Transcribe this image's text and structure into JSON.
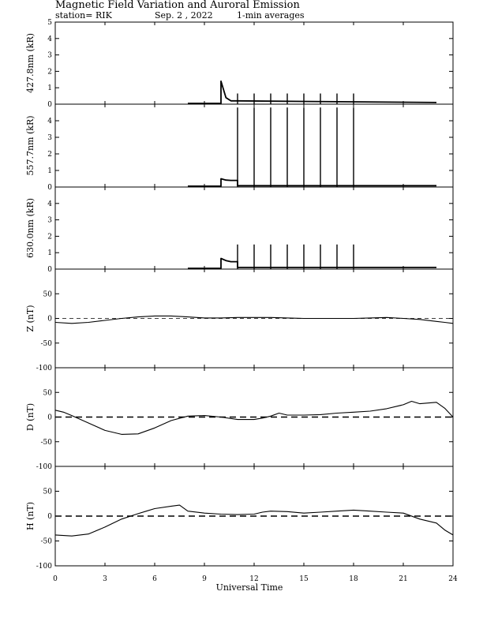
{
  "header": {
    "title": "Magnetic Field Variation and Auroral Emission",
    "station": "station= RIK",
    "date": "Sep. 2  , 2022",
    "averaging": "1-min averages"
  },
  "chart_data": [
    {
      "type": "line",
      "ylabel": "427.8nm (kR)",
      "ylim": [
        0,
        5
      ],
      "yticks": [
        0,
        1,
        2,
        3,
        4,
        5
      ],
      "xlim": [
        0,
        24
      ],
      "series": [
        {
          "values": [
            [
              8,
              0.05
            ],
            [
              10,
              0.05
            ],
            [
              10,
              1.4
            ],
            [
              10.3,
              0.4
            ],
            [
              10.6,
              0.2
            ],
            [
              11,
              0.2
            ],
            [
              23,
              0.1
            ]
          ]
        }
      ],
      "spikes": {
        "times": [
          11,
          12,
          13,
          14,
          15,
          16,
          17,
          18
        ],
        "height": 0.65
      }
    },
    {
      "type": "line",
      "ylabel": "557.7nm (kR)",
      "ylim": [
        0,
        5
      ],
      "yticks": [
        0,
        1,
        2,
        3,
        4
      ],
      "xlim": [
        0,
        24
      ],
      "series": [
        {
          "values": [
            [
              8,
              0.05
            ],
            [
              10,
              0.05
            ],
            [
              10,
              0.5
            ],
            [
              10.3,
              0.42
            ],
            [
              10.6,
              0.4
            ],
            [
              11,
              0.4
            ],
            [
              11,
              0.08
            ],
            [
              23,
              0.08
            ]
          ]
        }
      ],
      "spikes": {
        "times": [
          11,
          12,
          13,
          14,
          15,
          16,
          17,
          18
        ],
        "height": 4.8
      }
    },
    {
      "type": "line",
      "ylabel": "630.0nm (kR)",
      "ylim": [
        0,
        5
      ],
      "yticks": [
        0,
        1,
        2,
        3,
        4
      ],
      "xlim": [
        0,
        24
      ],
      "series": [
        {
          "values": [
            [
              8,
              0.05
            ],
            [
              10,
              0.05
            ],
            [
              10,
              0.65
            ],
            [
              10.3,
              0.52
            ],
            [
              10.6,
              0.45
            ],
            [
              11,
              0.45
            ],
            [
              11,
              0.1
            ],
            [
              23,
              0.1
            ]
          ]
        }
      ],
      "spikes": {
        "times": [
          11,
          12,
          13,
          14,
          15,
          16,
          17,
          18
        ],
        "height": 1.5
      }
    },
    {
      "type": "line",
      "ylabel": "Z (nT)",
      "ylim": [
        -100,
        100
      ],
      "yticks": [
        -100,
        -50,
        0,
        50
      ],
      "xlim": [
        0,
        24
      ],
      "zero_line": "thin-dashed",
      "series": [
        {
          "values": [
            [
              0,
              -8
            ],
            [
              1,
              -10
            ],
            [
              2,
              -8
            ],
            [
              3,
              -4
            ],
            [
              4,
              0
            ],
            [
              5,
              3
            ],
            [
              6,
              5
            ],
            [
              7,
              5
            ],
            [
              8,
              3
            ],
            [
              9,
              1
            ],
            [
              10,
              1
            ],
            [
              11,
              2
            ],
            [
              12,
              2
            ],
            [
              13,
              2
            ],
            [
              14,
              1
            ],
            [
              15,
              0
            ],
            [
              16,
              0
            ],
            [
              17,
              0
            ],
            [
              18,
              0
            ],
            [
              19,
              1
            ],
            [
              20,
              2
            ],
            [
              21,
              0
            ],
            [
              22,
              -2
            ],
            [
              23,
              -6
            ],
            [
              23.5,
              -8
            ],
            [
              24,
              -10
            ]
          ]
        }
      ]
    },
    {
      "type": "line",
      "ylabel": "D (nT)",
      "ylim": [
        -100,
        100
      ],
      "yticks": [
        -100,
        -50,
        0,
        50
      ],
      "xlim": [
        0,
        24
      ],
      "zero_line": "thick-dashed",
      "series": [
        {
          "values": [
            [
              0,
              14
            ],
            [
              0.5,
              10
            ],
            [
              1,
              3
            ],
            [
              2,
              -12
            ],
            [
              3,
              -27
            ],
            [
              4,
              -35
            ],
            [
              5,
              -34
            ],
            [
              6,
              -22
            ],
            [
              7,
              -7
            ],
            [
              8,
              2
            ],
            [
              9,
              3
            ],
            [
              10,
              0
            ],
            [
              11,
              -5
            ],
            [
              12,
              -5
            ],
            [
              12.5,
              -2
            ],
            [
              13,
              2
            ],
            [
              13.5,
              8
            ],
            [
              14,
              4
            ],
            [
              15,
              4
            ],
            [
              16,
              5
            ],
            [
              17,
              8
            ],
            [
              18,
              10
            ],
            [
              19,
              12
            ],
            [
              20,
              17
            ],
            [
              21,
              25
            ],
            [
              21.5,
              32
            ],
            [
              22,
              27
            ],
            [
              23,
              30
            ],
            [
              23.5,
              18
            ],
            [
              24,
              0
            ]
          ]
        }
      ]
    },
    {
      "type": "line",
      "ylabel": "H (nT)",
      "ylim": [
        -100,
        100
      ],
      "yticks": [
        -100,
        -50,
        0,
        50
      ],
      "xlim": [
        0,
        24
      ],
      "zero_line": "thick-dashed",
      "series": [
        {
          "values": [
            [
              0,
              -38
            ],
            [
              1,
              -40
            ],
            [
              2,
              -36
            ],
            [
              3,
              -22
            ],
            [
              4,
              -6
            ],
            [
              5,
              5
            ],
            [
              5.5,
              10
            ],
            [
              6,
              15
            ],
            [
              7,
              20
            ],
            [
              7.5,
              22
            ],
            [
              8,
              10
            ],
            [
              9,
              6
            ],
            [
              10,
              4
            ],
            [
              11,
              3
            ],
            [
              12,
              4
            ],
            [
              12.5,
              8
            ],
            [
              13,
              10
            ],
            [
              14,
              9
            ],
            [
              15,
              6
            ],
            [
              16,
              8
            ],
            [
              17,
              10
            ],
            [
              18,
              12
            ],
            [
              19,
              10
            ],
            [
              20,
              8
            ],
            [
              21,
              6
            ],
            [
              22,
              -6
            ],
            [
              23,
              -14
            ],
            [
              23.5,
              -28
            ],
            [
              24,
              -38
            ]
          ]
        }
      ]
    }
  ],
  "x_axis": {
    "label": "Universal Time",
    "ticks": [
      0,
      3,
      6,
      9,
      12,
      15,
      18,
      21,
      24
    ]
  }
}
